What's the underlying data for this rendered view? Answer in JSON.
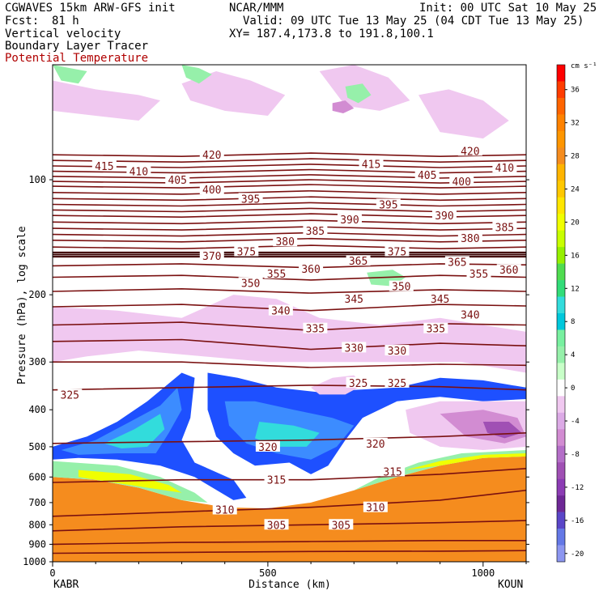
{
  "header": {
    "model": "CGWAVES 15km ARW-GFS init",
    "institution": "NCAR/MMM",
    "init_time": "Init: 00 UTC Sat 10 May 25",
    "forecast_label": "Fcst:",
    "forecast_hours": "81 h",
    "valid_time": "Valid: 09 UTC Tue 13 May 25 (04 CDT Tue 13 May 25)",
    "field_1": "Vertical velocity",
    "field_2": "Boundary Layer Tracer",
    "field_3": "Potential Temperature",
    "cross_section": "XY= 187.4,173.8 to 191.8,100.1"
  },
  "colors": {
    "theta_contour": "#7a1010",
    "orange_tracer": "#f58c1e",
    "blue_strong": "#1e50ff",
    "blue_mid": "#3c8cff",
    "cyan": "#32dcdc",
    "light_green": "#96f0aa",
    "light_pink": "#f0c8f0",
    "pink": "#d28cd2",
    "purple": "#a050b4"
  },
  "chart_data": {
    "type": "heatmap",
    "title": "",
    "xlabel": "Distance (km)",
    "ylabel": "Pressure (hPa), log scale",
    "x_ticks": [
      "0",
      "500",
      "1000"
    ],
    "x_range": [
      0,
      1100
    ],
    "x_endpoint_labels": [
      "KABR",
      "KOUN"
    ],
    "y_ticks": [
      "100",
      "200",
      "300",
      "400",
      "500",
      "600",
      "700",
      "800",
      "900",
      "1000"
    ],
    "y_range_hPa": [
      1000,
      50
    ],
    "y_scale": "log",
    "colorbar": {
      "units": "cm s⁻¹",
      "tick_labels": [
        "36",
        "32",
        "28",
        "24",
        "20",
        "16",
        "12",
        "8",
        "4",
        "0",
        "-4",
        "-8",
        "-12",
        "-16",
        "-20"
      ],
      "levels": [
        38,
        36,
        34,
        32,
        30,
        28,
        26,
        24,
        22,
        20,
        18,
        16,
        14,
        12,
        10,
        8,
        6,
        4,
        2,
        0,
        -2,
        -4,
        -6,
        -8,
        -10,
        -12,
        -14,
        -16,
        -18,
        -20
      ],
      "colors": [
        "#ff0000",
        "#ff3c00",
        "#ff6400",
        "#ff8200",
        "#ff9600",
        "#f58c1e",
        "#ffb400",
        "#ffc800",
        "#ffe600",
        "#f0ff00",
        "#c8ff00",
        "#96f000",
        "#50dc50",
        "#32dc78",
        "#32dcdc",
        "#00c8dc",
        "#78f0a0",
        "#96f0aa",
        "#c8ffc8",
        "#ffffff",
        "#f0c8f0",
        "#dcaae6",
        "#d28cd2",
        "#b46ec8",
        "#a050b4",
        "#8c3cb4",
        "#6e2896",
        "#5a46c8",
        "#6478e6",
        "#8c96f0"
      ]
    },
    "theta_contour_labels": [
      {
        "text": "415",
        "x": 120,
        "p": 92
      },
      {
        "text": "410",
        "x": 200,
        "p": 95
      },
      {
        "text": "405",
        "x": 290,
        "p": 100
      },
      {
        "text": "420",
        "x": 370,
        "p": 86
      },
      {
        "text": "400",
        "x": 370,
        "p": 106
      },
      {
        "text": "395",
        "x": 460,
        "p": 112
      },
      {
        "text": "370",
        "x": 370,
        "p": 158
      },
      {
        "text": "375",
        "x": 450,
        "p": 154
      },
      {
        "text": "380",
        "x": 540,
        "p": 145
      },
      {
        "text": "385",
        "x": 610,
        "p": 136
      },
      {
        "text": "390",
        "x": 690,
        "p": 127
      },
      {
        "text": "395",
        "x": 780,
        "p": 116
      },
      {
        "text": "350",
        "x": 460,
        "p": 186
      },
      {
        "text": "355",
        "x": 520,
        "p": 176
      },
      {
        "text": "360",
        "x": 600,
        "p": 171
      },
      {
        "text": "365",
        "x": 710,
        "p": 163
      },
      {
        "text": "375",
        "x": 800,
        "p": 154
      },
      {
        "text": "415",
        "x": 740,
        "p": 91
      },
      {
        "text": "405",
        "x": 870,
        "p": 97
      },
      {
        "text": "400",
        "x": 950,
        "p": 101
      },
      {
        "text": "420",
        "x": 970,
        "p": 84
      },
      {
        "text": "410",
        "x": 1050,
        "p": 93
      },
      {
        "text": "390",
        "x": 910,
        "p": 124
      },
      {
        "text": "380",
        "x": 970,
        "p": 142
      },
      {
        "text": "385",
        "x": 1050,
        "p": 133
      },
      {
        "text": "365",
        "x": 940,
        "p": 164
      },
      {
        "text": "355",
        "x": 990,
        "p": 176
      },
      {
        "text": "360",
        "x": 1060,
        "p": 172
      },
      {
        "text": "350",
        "x": 810,
        "p": 190
      },
      {
        "text": "345",
        "x": 700,
        "p": 205
      },
      {
        "text": "345",
        "x": 900,
        "p": 205
      },
      {
        "text": "340",
        "x": 530,
        "p": 220
      },
      {
        "text": "340",
        "x": 970,
        "p": 225
      },
      {
        "text": "335",
        "x": 610,
        "p": 245
      },
      {
        "text": "335",
        "x": 890,
        "p": 245
      },
      {
        "text": "330",
        "x": 700,
        "p": 275
      },
      {
        "text": "330",
        "x": 800,
        "p": 280
      },
      {
        "text": "325",
        "x": 40,
        "p": 365
      },
      {
        "text": "325",
        "x": 710,
        "p": 340
      },
      {
        "text": "325",
        "x": 800,
        "p": 340
      },
      {
        "text": "320",
        "x": 500,
        "p": 500
      },
      {
        "text": "320",
        "x": 750,
        "p": 490
      },
      {
        "text": "315",
        "x": 520,
        "p": 610
      },
      {
        "text": "315",
        "x": 790,
        "p": 580
      },
      {
        "text": "310",
        "x": 400,
        "p": 730
      },
      {
        "text": "310",
        "x": 750,
        "p": 720
      },
      {
        "text": "305",
        "x": 520,
        "p": 800
      },
      {
        "text": "305",
        "x": 670,
        "p": 800
      }
    ]
  }
}
